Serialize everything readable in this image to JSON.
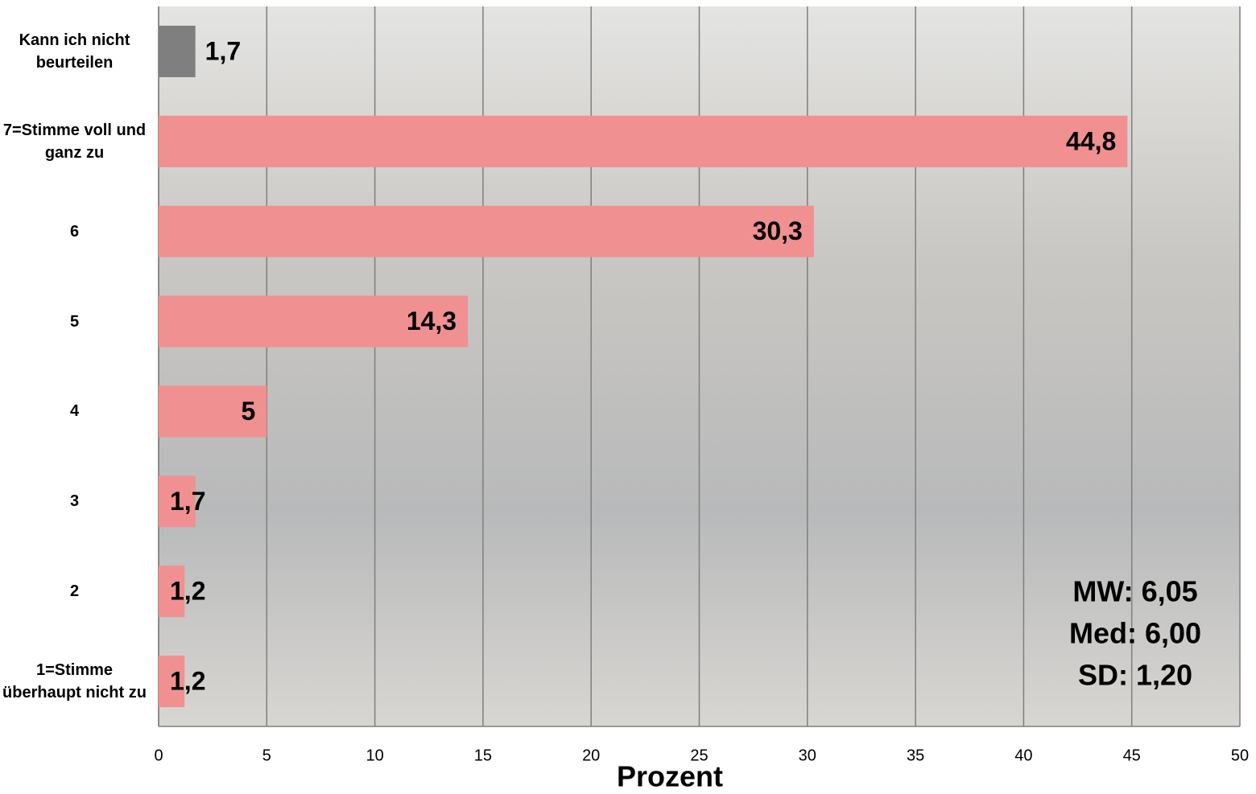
{
  "chart_data": {
    "type": "barh",
    "categories": [
      "Kann ich nicht beurteilen",
      "7=Stimme voll und ganz zu",
      "6",
      "5",
      "4",
      "3",
      "2",
      "1=Stimme überhaupt nicht zu"
    ],
    "values": [
      1.7,
      44.8,
      30.3,
      14.3,
      5,
      1.7,
      1.2,
      1.2
    ],
    "value_labels": [
      "1,7",
      "44,8",
      "30,3",
      "14,3",
      "5",
      "1,7",
      "1,2",
      "1,2"
    ],
    "colors": [
      "#7f7f7f",
      "#f09090",
      "#f09090",
      "#f09090",
      "#f09090",
      "#f09090",
      "#f09090",
      "#f09090"
    ],
    "xlim": [
      0,
      50
    ],
    "xticks": [
      0,
      5,
      10,
      15,
      20,
      25,
      30,
      35,
      40,
      45,
      50
    ],
    "xlabel": "Prozent",
    "grid": true,
    "annotations": [
      "MW: 6,05",
      "Med: 6,00",
      "SD: 1,20"
    ]
  }
}
